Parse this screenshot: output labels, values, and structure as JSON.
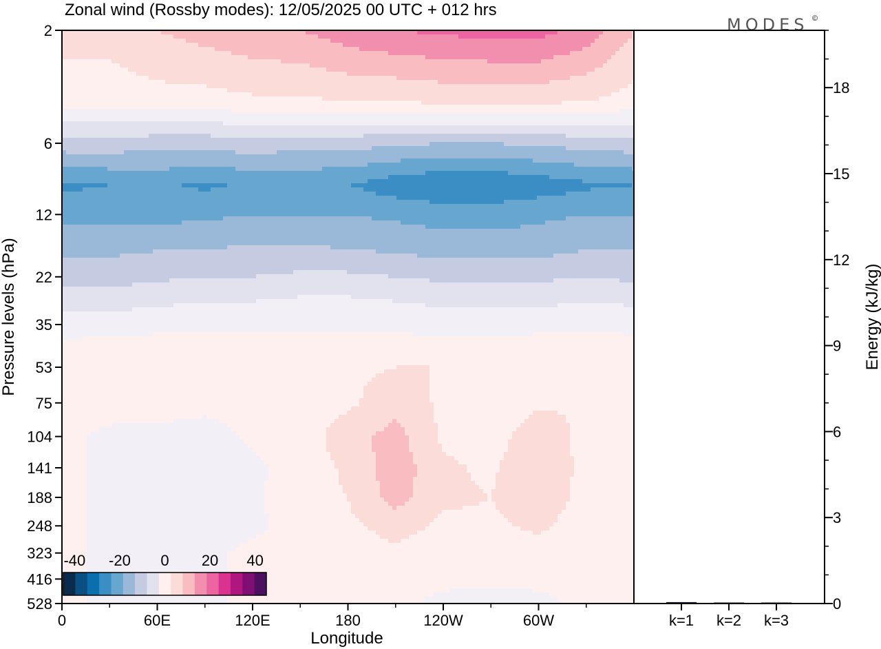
{
  "title": "Zonal wind (Rossby modes):  12/05/2025  00 UTC  + 012 hrs",
  "logo": "MODES",
  "logo_mark": "©",
  "colors": {
    "neg": [
      "#0a2b4c",
      "#0a4f82",
      "#0b6fae",
      "#3a8ec3",
      "#67a6cf",
      "#9ab8d8",
      "#c5cce2",
      "#e2e2ef",
      "#f2eff6"
    ],
    "pos": [
      "#fdf0ee",
      "#fbdcd8",
      "#f8bcc1",
      "#f38fae",
      "#ec64a0",
      "#d9338f",
      "#b01680",
      "#800f75",
      "#4c1060"
    ]
  },
  "chart_data": [
    {
      "type": "heatmap",
      "title": "Zonal wind (Rossby modes):  12/05/2025  00 UTC  + 012 hrs",
      "xlabel": "Longitude",
      "ylabel": "Pressure levels (hPa)",
      "x_ticks": [
        "0",
        "60E",
        "120E",
        "180",
        "120W",
        "60W"
      ],
      "y_ticks": [
        "2",
        "6",
        "12",
        "22",
        "35",
        "53",
        "75",
        "104",
        "141",
        "188",
        "248",
        "323",
        "416",
        "528"
      ],
      "colorbar_ticks": [
        "-40",
        "-20",
        "0",
        "20",
        "40"
      ],
      "colorbar_range": [
        -45,
        45
      ],
      "x": [
        0,
        30,
        60,
        90,
        120,
        150,
        180,
        210,
        240,
        270,
        300,
        330,
        360
      ],
      "y": [
        "2",
        "4",
        "6",
        "9",
        "12",
        "16",
        "22",
        "28",
        "35",
        "44",
        "53",
        "75",
        "104",
        "141",
        "188",
        "248",
        "323",
        "416",
        "528"
      ],
      "z": [
        [
          7,
          7,
          10,
          12,
          14,
          15,
          18,
          20,
          21,
          22,
          22,
          18,
          10
        ],
        [
          2,
          2,
          3,
          3,
          4,
          4,
          5,
          5,
          6,
          6,
          6,
          5,
          3
        ],
        [
          -12,
          -12,
          -13,
          -13,
          -12,
          -13,
          -13,
          -14,
          -15,
          -15,
          -14,
          -13,
          -12
        ],
        [
          -26,
          -25,
          -24,
          -26,
          -24,
          -24,
          -25,
          -28,
          -30,
          -30,
          -28,
          -26,
          -25
        ],
        [
          -22,
          -22,
          -22,
          -21,
          -20,
          -20,
          -20,
          -21,
          -22,
          -22,
          -21,
          -20,
          -20
        ],
        [
          -17,
          -17,
          -16,
          -16,
          -15,
          -15,
          -16,
          -17,
          -18,
          -18,
          -18,
          -16,
          -16
        ],
        [
          -12,
          -12,
          -11,
          -10,
          -10,
          -9,
          -9,
          -10,
          -11,
          -11,
          -11,
          -10,
          -11
        ],
        [
          -7,
          -7,
          -6,
          -5,
          -5,
          -4,
          -4,
          -5,
          -6,
          -6,
          -6,
          -5,
          -6
        ],
        [
          -2,
          -2,
          -2,
          -1,
          -1,
          -1,
          -1,
          -1,
          -2,
          -2,
          -2,
          -1,
          -1
        ],
        [
          1,
          2,
          3,
          3,
          3,
          3,
          2,
          2,
          2,
          2,
          3,
          3,
          1
        ],
        [
          1,
          4,
          5,
          5,
          4,
          5,
          4,
          5,
          5,
          4,
          5,
          5,
          1
        ],
        [
          1,
          2,
          3,
          2,
          3,
          2,
          4,
          8,
          4,
          1,
          4,
          5,
          1
        ],
        [
          1,
          -1,
          -2,
          -3,
          1,
          2,
          8,
          12,
          4,
          2,
          9,
          3,
          1
        ],
        [
          1,
          -1,
          -2,
          -4,
          -1,
          2,
          6,
          13,
          6,
          4,
          10,
          3,
          1
        ],
        [
          1,
          -1,
          -2,
          -3,
          -1,
          3,
          5,
          12,
          6,
          5,
          9,
          3,
          1
        ],
        [
          1,
          -1,
          -1,
          -2,
          -1,
          2,
          4,
          7,
          4,
          4,
          6,
          2,
          1
        ],
        [
          1,
          -1,
          -1,
          -1,
          1,
          1,
          2,
          4,
          2,
          2,
          3,
          1,
          1
        ],
        [
          1,
          -1,
          -1,
          -1,
          1,
          1,
          1,
          2,
          1,
          1,
          1,
          1,
          1
        ],
        [
          1,
          -1,
          -1,
          -1,
          1,
          1,
          1,
          1,
          -1,
          -2,
          -1,
          1,
          1
        ]
      ]
    },
    {
      "type": "bar",
      "ylabel": "Energy (kJ/kg)",
      "categories": [
        "k=1",
        "k=2",
        "k=3"
      ],
      "values": [
        0.05,
        0.02,
        0.01
      ],
      "ylim": [
        0,
        20
      ],
      "y_ticks": [
        "0",
        "3",
        "6",
        "9",
        "12",
        "15",
        "18"
      ]
    }
  ]
}
